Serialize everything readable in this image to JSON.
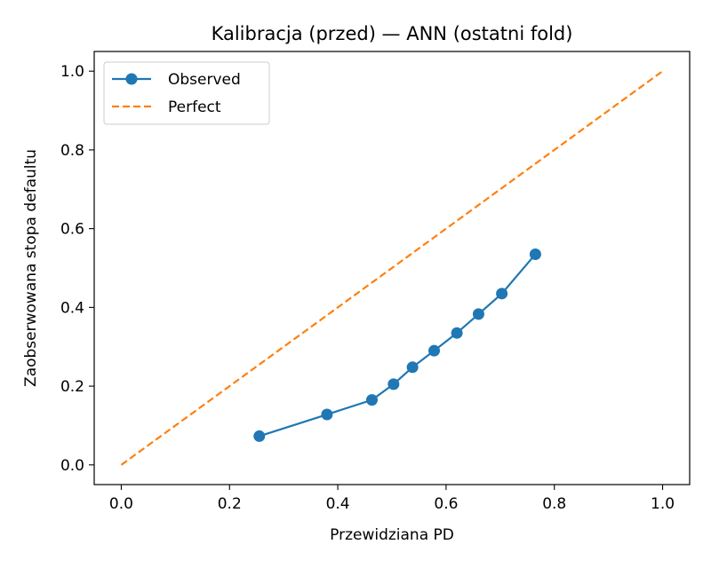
{
  "chart_data": {
    "type": "line",
    "title": "Kalibracja (przed) — ANN (ostatni fold)",
    "xlabel": "Przewidziana PD",
    "ylabel": "Zaobserwowana stopa defaultu",
    "xlim": [
      -0.05,
      1.05
    ],
    "ylim": [
      -0.05,
      1.05
    ],
    "xticks": [
      0.0,
      0.2,
      0.4,
      0.6,
      0.8,
      1.0
    ],
    "yticks": [
      0.0,
      0.2,
      0.4,
      0.6,
      0.8,
      1.0
    ],
    "tick_labels": [
      "0.0",
      "0.2",
      "0.4",
      "0.6",
      "0.8",
      "1.0"
    ],
    "grid": false,
    "legend_position": "top-left",
    "series": [
      {
        "name": "Observed",
        "color": "#1f77b4",
        "style": "solid",
        "marker": "circle",
        "x": [
          0.255,
          0.38,
          0.463,
          0.503,
          0.538,
          0.578,
          0.62,
          0.66,
          0.703,
          0.765
        ],
        "y": [
          0.073,
          0.128,
          0.165,
          0.205,
          0.248,
          0.29,
          0.335,
          0.383,
          0.435,
          0.535
        ]
      },
      {
        "name": "Perfect",
        "color": "#ff7f0e",
        "style": "dashed",
        "marker": "none",
        "x": [
          0.0,
          1.0
        ],
        "y": [
          0.0,
          1.0
        ]
      }
    ]
  }
}
